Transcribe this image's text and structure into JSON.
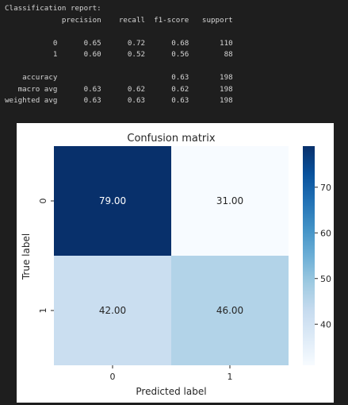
{
  "report": {
    "title": "Classification report:",
    "header": [
      "precision",
      "recall",
      "f1-score",
      "support"
    ],
    "rows": [
      {
        "label": "0",
        "precision": "0.65",
        "recall": "0.72",
        "f1": "0.68",
        "support": "110"
      },
      {
        "label": "1",
        "precision": "0.60",
        "recall": "0.52",
        "f1": "0.56",
        "support": "88"
      },
      {
        "label": "accuracy",
        "precision": "",
        "recall": "",
        "f1": "0.63",
        "support": "198"
      },
      {
        "label": "macro avg",
        "precision": "0.63",
        "recall": "0.62",
        "f1": "0.62",
        "support": "198"
      },
      {
        "label": "weighted avg",
        "precision": "0.63",
        "recall": "0.63",
        "f1": "0.63",
        "support": "198"
      }
    ]
  },
  "chart_data": {
    "type": "heatmap",
    "title": "Confusion matrix",
    "xlabel": "Predicted label",
    "ylabel": "True label",
    "x_categories": [
      "0",
      "1"
    ],
    "y_categories": [
      "0",
      "1"
    ],
    "values": [
      [
        79,
        31
      ],
      [
        42,
        46
      ]
    ],
    "cell_labels": [
      [
        "79.00",
        "31.00"
      ],
      [
        "42.00",
        "46.00"
      ]
    ],
    "colormap": "Blues",
    "colorbar_range": [
      31,
      79
    ],
    "colorbar_ticks": [
      "70",
      "60",
      "50",
      "40"
    ],
    "colorbar_tick_values": [
      70,
      60,
      50,
      40
    ]
  }
}
